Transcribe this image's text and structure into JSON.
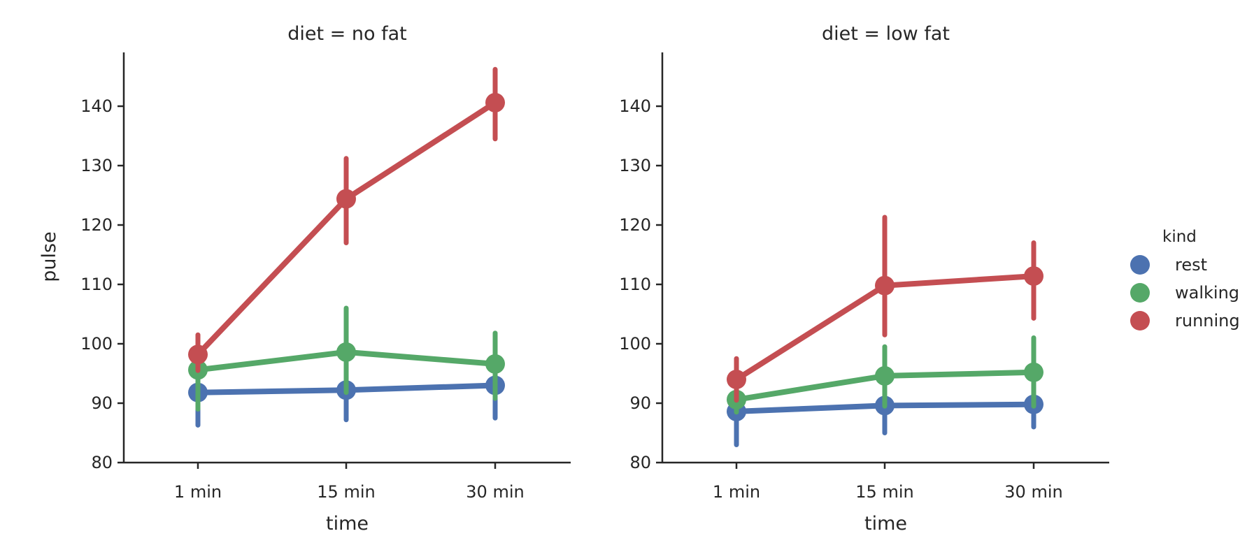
{
  "chart_data": [
    {
      "type": "line",
      "title": "diet = no fat",
      "xlabel": "time",
      "ylabel": "pulse",
      "categories": [
        "1 min",
        "15 min",
        "30 min"
      ],
      "ylim": [
        80,
        149
      ],
      "yticks": [
        80,
        90,
        100,
        110,
        120,
        130,
        140
      ],
      "series": [
        {
          "name": "rest",
          "values": [
            91.8,
            92.2,
            93.0
          ],
          "ci_low": [
            86.3,
            87.2,
            87.5
          ],
          "ci_high": [
            96.5,
            97.0,
            98.5
          ]
        },
        {
          "name": "walking",
          "values": [
            95.6,
            98.6,
            96.6
          ],
          "ci_low": [
            89.0,
            91.8,
            90.8
          ],
          "ci_high": [
            101.2,
            106.0,
            101.8
          ]
        },
        {
          "name": "running",
          "values": [
            98.2,
            124.4,
            140.6
          ],
          "ci_low": [
            95.5,
            117.0,
            134.5
          ],
          "ci_high": [
            101.5,
            131.2,
            146.2
          ]
        }
      ]
    },
    {
      "type": "line",
      "title": "diet = low fat",
      "xlabel": "time",
      "ylabel": "",
      "categories": [
        "1 min",
        "15 min",
        "30 min"
      ],
      "ylim": [
        80,
        149
      ],
      "yticks": [
        80,
        90,
        100,
        110,
        120,
        130,
        140
      ],
      "series": [
        {
          "name": "rest",
          "values": [
            88.6,
            89.6,
            89.8
          ],
          "ci_low": [
            83.0,
            85.0,
            86.0
          ],
          "ci_high": [
            93.0,
            94.0,
            94.0
          ]
        },
        {
          "name": "walking",
          "values": [
            90.6,
            94.6,
            95.2
          ],
          "ci_low": [
            88.5,
            89.5,
            89.5
          ],
          "ci_high": [
            93.5,
            99.5,
            101.0
          ]
        },
        {
          "name": "running",
          "values": [
            94.0,
            109.8,
            111.4
          ],
          "ci_low": [
            90.5,
            101.5,
            104.3
          ],
          "ci_high": [
            97.5,
            121.3,
            117.0
          ]
        }
      ]
    }
  ],
  "legend": {
    "title": "kind",
    "placement": "right",
    "items": [
      "rest",
      "walking",
      "running"
    ]
  },
  "colors": {
    "rest": "#4c72b0",
    "walking": "#55a868",
    "running": "#c44e52",
    "axis": "#262626"
  }
}
